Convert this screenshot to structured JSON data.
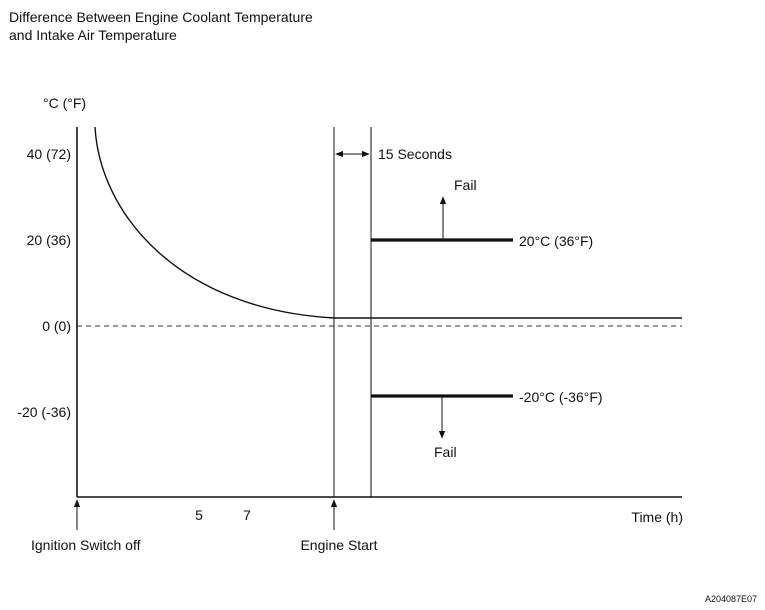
{
  "title_lines": [
    "Difference Between Engine Coolant Temperature",
    "and Intake Air Temperature"
  ],
  "y_unit": "°C (°F)",
  "y_ticks": [
    {
      "label": "40 (72)",
      "value": 40
    },
    {
      "label": "20 (36)",
      "value": 20
    },
    {
      "label": "0 (0)",
      "value": 0
    },
    {
      "label": "-20 (-36)",
      "value": -20
    }
  ],
  "x_label": "Time (h)",
  "x_ticks": [
    "5",
    "7"
  ],
  "events": {
    "ignition_off": "Ignition Switch off",
    "engine_start": "Engine Start"
  },
  "interval_label": "15 Seconds",
  "thresholds": {
    "upper": {
      "value": 20,
      "label": "20°C (36°F)",
      "result": "Fail"
    },
    "lower": {
      "value": -20,
      "label": "-20°C (-36°F)",
      "result": "Fail"
    }
  },
  "figure_code": "A204087E07"
}
